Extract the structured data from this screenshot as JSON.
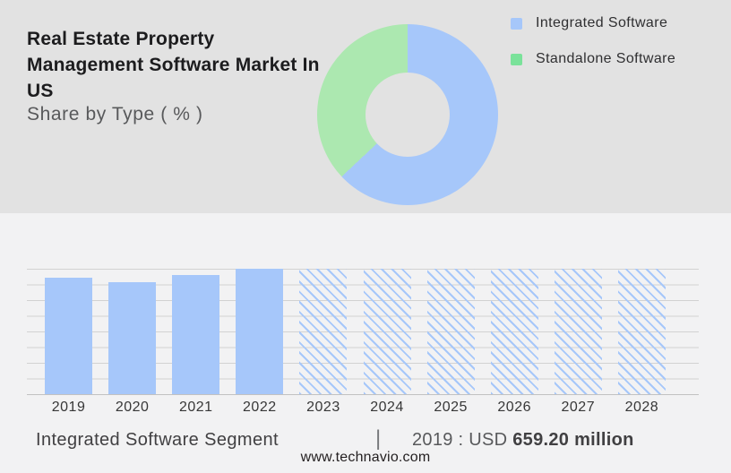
{
  "header": {
    "title": "Real Estate Property Management Software Market In US",
    "title_lines": [
      "Real Estate Property",
      "Management Software Market In",
      "US"
    ],
    "subtitle": "Share by Type ( % )"
  },
  "colors": {
    "accent_blue": "#a6c7fa",
    "donut_green": "#ace8b0",
    "legend_green": "#7ae29a",
    "top_background": "#e2e2e2",
    "bottom_background": "#f2f2f3",
    "gridline": "#d2d2d2",
    "baseline": "#c2c2c2"
  },
  "legend": {
    "items": [
      {
        "label": "Integrated Software",
        "color": "#a6c7fa"
      },
      {
        "label": "Standalone Software",
        "color": "#7ae29a"
      }
    ]
  },
  "chart_data": [
    {
      "type": "pie",
      "subtype": "donut",
      "title": "Share by Type ( % )",
      "labels": [
        "Integrated Software",
        "Standalone Software"
      ],
      "values_pct": [
        63,
        37
      ],
      "colors": [
        "#a6c7fa",
        "#ace8b0"
      ],
      "start_angle_deg": 0,
      "direction": "clockwise",
      "note": "no numeric labels shown; shares estimated from arc angles"
    },
    {
      "type": "bar",
      "categories": [
        "2019",
        "2020",
        "2021",
        "2022",
        "2023",
        "2024",
        "2025",
        "2026",
        "2027",
        "2028"
      ],
      "values_pct_of_max": [
        93,
        89,
        95,
        100,
        100,
        100,
        100,
        100,
        100,
        100
      ],
      "forecast_hatched": [
        false,
        false,
        false,
        false,
        true,
        true,
        true,
        true,
        true,
        true
      ],
      "bar_color": "#a6c7fa",
      "gridline_rows": 8,
      "ylim": [
        0,
        100
      ],
      "known_value_label": "2019 : USD 659.20 million",
      "note": "no y-axis labels shown; heights are percent of tallest (2022) bar; hatched bars are forecast years at full height"
    }
  ],
  "caption": {
    "segment_label": "Integrated Software Segment",
    "separator": "|",
    "value_prefix": "2019 : USD ",
    "value_bold": "659.20 million"
  },
  "footer": {
    "website": "www.technavio.com"
  }
}
